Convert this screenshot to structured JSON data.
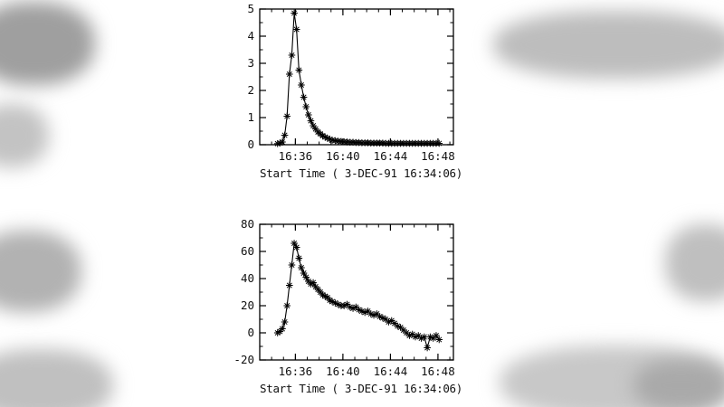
{
  "page": {
    "background_color": "#ffffff",
    "plot_color": "#000000"
  },
  "chart_data": [
    {
      "type": "line",
      "marker": "asterisk",
      "title": "",
      "xlabel": "Start Time ( 3-DEC-91 16:34:06)",
      "ylabel": "",
      "x_unit": "minutes after 16:34:00",
      "xlim": [
        -1,
        15.3
      ],
      "ylim": [
        0,
        5
      ],
      "y_ticks": [
        0,
        1,
        2,
        3,
        4,
        5
      ],
      "y_minor_step": 0.5,
      "x_minor_step": 1,
      "x_ticks": [
        {
          "value": 2,
          "label": "16:36"
        },
        {
          "value": 6,
          "label": "16:40"
        },
        {
          "value": 10,
          "label": "16:44"
        },
        {
          "value": 14,
          "label": "16:48"
        }
      ],
      "grid": false,
      "line_color": "#000000",
      "x": [
        0.5,
        0.7,
        0.9,
        1.1,
        1.3,
        1.5,
        1.7,
        1.9,
        2.1,
        2.3,
        2.5,
        2.7,
        2.9,
        3.1,
        3.3,
        3.5,
        3.7,
        3.9,
        4.1,
        4.3,
        4.5,
        4.7,
        4.9,
        5.1,
        5.35,
        5.6,
        5.85,
        6.1,
        6.35,
        6.6,
        6.85,
        7.1,
        7.35,
        7.6,
        7.85,
        8.1,
        8.35,
        8.6,
        8.85,
        9.1,
        9.35,
        9.6,
        9.85,
        10.1,
        10.35,
        10.6,
        10.85,
        11.1,
        11.35,
        11.6,
        11.85,
        12.1,
        12.35,
        12.6,
        12.85,
        13.1,
        13.35,
        13.6,
        13.85,
        14.1
      ],
      "y": [
        0.04,
        0.06,
        0.1,
        0.35,
        1.05,
        2.6,
        3.3,
        4.85,
        4.25,
        2.75,
        2.2,
        1.75,
        1.4,
        1.1,
        0.88,
        0.7,
        0.58,
        0.47,
        0.4,
        0.33,
        0.28,
        0.24,
        0.2,
        0.17,
        0.15,
        0.13,
        0.12,
        0.11,
        0.1,
        0.09,
        0.09,
        0.08,
        0.08,
        0.07,
        0.07,
        0.07,
        0.06,
        0.06,
        0.06,
        0.06,
        0.06,
        0.05,
        0.05,
        0.05,
        0.05,
        0.05,
        0.05,
        0.05,
        0.05,
        0.05,
        0.05,
        0.05,
        0.05,
        0.05,
        0.05,
        0.05,
        0.05,
        0.05,
        0.05,
        0.05
      ]
    },
    {
      "type": "line",
      "marker": "asterisk",
      "title": "",
      "xlabel": "Start Time ( 3-DEC-91 16:34:06)",
      "ylabel": "",
      "x_unit": "minutes after 16:34:00",
      "xlim": [
        -1,
        15.3
      ],
      "ylim": [
        -20,
        80
      ],
      "y_ticks": [
        -20,
        0,
        20,
        40,
        60,
        80
      ],
      "y_minor_step": 10,
      "x_minor_step": 1,
      "x_ticks": [
        {
          "value": 2,
          "label": "16:36"
        },
        {
          "value": 6,
          "label": "16:40"
        },
        {
          "value": 10,
          "label": "16:44"
        },
        {
          "value": 14,
          "label": "16:48"
        }
      ],
      "grid": false,
      "line_color": "#000000",
      "x": [
        0.5,
        0.7,
        0.9,
        1.1,
        1.3,
        1.5,
        1.7,
        1.9,
        2.1,
        2.3,
        2.5,
        2.7,
        2.9,
        3.1,
        3.3,
        3.5,
        3.7,
        3.9,
        4.1,
        4.3,
        4.5,
        4.7,
        4.9,
        5.1,
        5.35,
        5.6,
        5.85,
        6.1,
        6.35,
        6.6,
        6.85,
        7.1,
        7.35,
        7.6,
        7.85,
        8.1,
        8.35,
        8.6,
        8.85,
        9.1,
        9.35,
        9.6,
        9.85,
        10.1,
        10.35,
        10.6,
        10.85,
        11.1,
        11.35,
        11.6,
        11.85,
        12.1,
        12.35,
        12.6,
        12.85,
        13.1,
        13.35,
        13.6,
        13.85,
        14.1
      ],
      "y": [
        0,
        1,
        3,
        8,
        20,
        35,
        50,
        66,
        63,
        55,
        48,
        44,
        41,
        38,
        36,
        37,
        34,
        32,
        30,
        28,
        27,
        26,
        24,
        23,
        22,
        21,
        20,
        20,
        21,
        19,
        18,
        19,
        17,
        16,
        15,
        16,
        14,
        13,
        14,
        12,
        11,
        10,
        8,
        9,
        7,
        5,
        4,
        2,
        0,
        -2,
        -1,
        -3,
        -2,
        -4,
        -3,
        -11,
        -3,
        -4,
        -2,
        -5
      ]
    }
  ]
}
